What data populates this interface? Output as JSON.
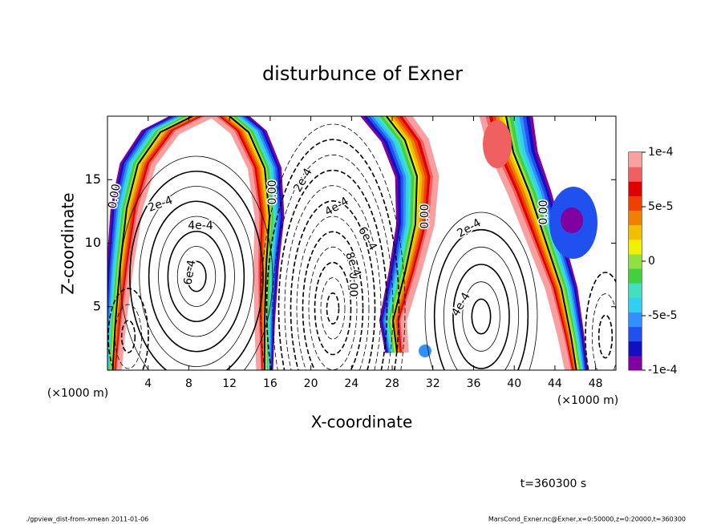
{
  "chart_data": {
    "type": "contour",
    "title": "disturbunce of Exner",
    "xlabel": "X-coordinate",
    "ylabel": "Z-coordinate",
    "xunit": "(×1000 m)",
    "yunit": "(×1000 m)",
    "xlim": [
      0,
      50
    ],
    "ylim": [
      0,
      20
    ],
    "xticks": [
      4,
      8,
      12,
      16,
      20,
      24,
      28,
      32,
      36,
      40,
      44,
      48
    ],
    "yticks": [
      5,
      10,
      15
    ],
    "colorbar": {
      "lim": [
        -0.0001,
        0.0001
      ],
      "ticks": [
        {
          "value": 0.0001,
          "label": "1e-4"
        },
        {
          "value": 5e-05,
          "label": "5e-5"
        },
        0,
        {
          "value": -5e-05,
          "label": "-5e-5"
        },
        {
          "value": -0.0001,
          "label": "-1e-4"
        }
      ],
      "colors": [
        "#8000a0",
        "#1010c0",
        "#2050f0",
        "#3090ff",
        "#30d0f0",
        "#40e0c0",
        "#40d040",
        "#90e040",
        "#f0f000",
        "#f0c000",
        "#f08000",
        "#f04000",
        "#e00000",
        "#f06060",
        "#f8a0a0"
      ]
    },
    "contour_labels": [
      {
        "value": 0,
        "label": "0.00"
      },
      {
        "value": 0,
        "label": "0.00"
      },
      {
        "value": 0,
        "label": "0.00"
      },
      {
        "value": 0,
        "label": "0.00"
      },
      {
        "value": 0,
        "label": "0.00"
      },
      {
        "value": 0.0002,
        "label": "2e-4"
      },
      {
        "value": 0.0002,
        "label": "2e-4"
      },
      {
        "value": 0.0002,
        "label": "2e-4"
      },
      {
        "value": 0.0004,
        "label": "4e-4"
      },
      {
        "value": 0.0004,
        "label": "4e-4"
      },
      {
        "value": 0.0004,
        "label": "4e-4"
      },
      {
        "value": 0.0006,
        "label": "6e-4"
      },
      {
        "value": 0.0006,
        "label": "6e-4"
      },
      {
        "value": 0.0008,
        "label": "8e-4"
      }
    ],
    "time_label": "t=360300 s",
    "footer_left": "./gpview_dist-from-xmean  2011-01-06",
    "footer_right": "MarsCond_Exner.nc@Exner,x=0:50000,z=0:20000,t=360300"
  }
}
